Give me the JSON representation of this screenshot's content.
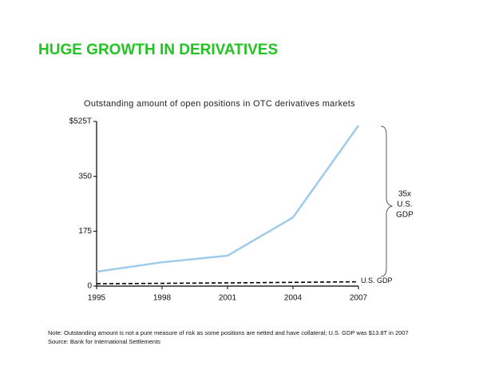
{
  "title": "HUGE GROWTH IN DERIVATIVES",
  "chart_data": {
    "type": "line",
    "title": "Outstanding amount of open positions in OTC derivatives markets",
    "x": [
      1995,
      1998,
      2001,
      2004,
      2007
    ],
    "series": [
      {
        "color": "#9fcbeb",
        "values": [
          46,
          76,
          97,
          219,
          512
        ]
      },
      {
        "name": "U.S. GDP",
        "color": "#000000",
        "dashed": true,
        "values": [
          7.4,
          8.8,
          10.3,
          11.9,
          13.8
        ]
      }
    ],
    "xlim": [
      1995,
      2007
    ],
    "xticks": [
      1995,
      1998,
      2001,
      2004,
      2007
    ],
    "ylim": [
      0,
      525
    ],
    "yticks": [
      0,
      175,
      350,
      {
        "value": 525,
        "label": "$525T"
      }
    ],
    "annotation": [
      "35x",
      "U.S.",
      "GDP"
    ]
  },
  "note": "Note:  Outstanding amount is not a pure measure of risk as some positions are netted and have collateral; U.S. GDP was $13.8T in 2007",
  "source": "Source:  Bank for International Settlements"
}
